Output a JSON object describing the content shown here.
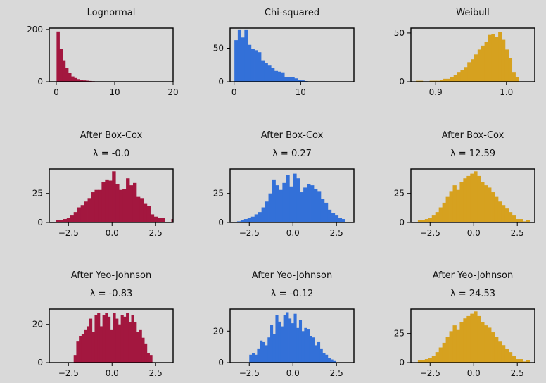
{
  "colors": {
    "background": "#d9d9d9",
    "lognormal": "#a3173f",
    "chi": "#3370d8",
    "weibull": "#d6a11f"
  },
  "chart_data": [
    {
      "type": "bar",
      "title": "Lognormal",
      "color": "#a3173f",
      "xlim": [
        -1.2,
        20
      ],
      "ylim": [
        0,
        205
      ],
      "xticks": [
        0,
        10,
        20
      ],
      "xtick_labels": [
        "0",
        "10",
        "20"
      ],
      "yticks": [
        0,
        200
      ],
      "ytick_labels": [
        "0",
        "200"
      ],
      "bin_start": 0.05,
      "bin_width": 0.5,
      "values": [
        192,
        125,
        82,
        52,
        35,
        20,
        14,
        10,
        8,
        5,
        4,
        3,
        2,
        1
      ]
    },
    {
      "type": "bar",
      "title": "Chi-squared",
      "color": "#3370d8",
      "xlim": [
        -0.6,
        18
      ],
      "ylim": [
        0,
        80
      ],
      "xticks": [
        0,
        10
      ],
      "xtick_labels": [
        "0",
        "10"
      ],
      "yticks": [
        0,
        50
      ],
      "ytick_labels": [
        "0",
        "50"
      ],
      "bin_start": 0.05,
      "bin_width": 0.5,
      "values": [
        62,
        78,
        66,
        78,
        55,
        49,
        47,
        44,
        32,
        28,
        24,
        21,
        16,
        15,
        14,
        7,
        7,
        7,
        5,
        3,
        2,
        1
      ]
    },
    {
      "type": "bar",
      "title": "Weibull",
      "color": "#d6a11f",
      "xlim": [
        0.865,
        1.04
      ],
      "ylim": [
        0,
        55
      ],
      "xticks": [
        0.9,
        1.0
      ],
      "xtick_labels": [
        "0.9",
        "1.0"
      ],
      "yticks": [
        0,
        50
      ],
      "ytick_labels": [
        "0",
        "50"
      ],
      "bin_start": 0.872,
      "bin_width": 0.00485,
      "values": [
        1,
        1,
        0,
        0,
        1,
        1,
        1,
        2,
        3,
        3,
        5,
        7,
        10,
        12,
        15,
        20,
        23,
        28,
        33,
        37,
        41,
        48,
        49,
        46,
        51,
        43,
        33,
        24,
        10,
        5
      ]
    },
    {
      "type": "bar",
      "title": "After Box-Cox",
      "subtitle": "λ = -0.0",
      "color": "#a3173f",
      "xlim": [
        -3.6,
        3.5
      ],
      "ylim": [
        0,
        46
      ],
      "xticks": [
        -2.5,
        0.0,
        2.5
      ],
      "xtick_labels": [
        "−2.5",
        "0.0",
        "2.5"
      ],
      "yticks": [
        0,
        25
      ],
      "ytick_labels": [
        "0",
        "25"
      ],
      "bin_start": -3.2,
      "bin_width": 0.2,
      "values": [
        2,
        2,
        3,
        4,
        6,
        9,
        13,
        15,
        18,
        21,
        26,
        28,
        28,
        35,
        37,
        36,
        44,
        33,
        28,
        29,
        38,
        32,
        34,
        22,
        21,
        16,
        14,
        7,
        5,
        4,
        4,
        0,
        0,
        3
      ]
    },
    {
      "type": "bar",
      "title": "After Box-Cox",
      "subtitle": "λ = 0.27",
      "color": "#3370d8",
      "xlim": [
        -3.6,
        3.5
      ],
      "ylim": [
        0,
        46
      ],
      "xticks": [
        -2.5,
        0.0,
        2.5
      ],
      "xtick_labels": [
        "−2.5",
        "0.0",
        "2.5"
      ],
      "yticks": [
        0,
        25
      ],
      "ytick_labels": [
        "0",
        "25"
      ],
      "bin_start": -3.2,
      "bin_width": 0.2,
      "values": [
        1,
        2,
        3,
        4,
        5,
        7,
        9,
        13,
        18,
        25,
        37,
        32,
        28,
        34,
        41,
        31,
        42,
        38,
        26,
        30,
        33,
        32,
        29,
        27,
        20,
        17,
        11,
        8,
        6,
        4,
        3
      ]
    },
    {
      "type": "bar",
      "title": "After Box-Cox",
      "subtitle": "λ = 12.59",
      "color": "#d6a11f",
      "xlim": [
        -3.6,
        3.5
      ],
      "ylim": [
        0,
        46
      ],
      "xticks": [
        -2.5,
        0.0,
        2.5
      ],
      "xtick_labels": [
        "−2.5",
        "0.0",
        "2.5"
      ],
      "yticks": [
        0,
        25
      ],
      "ytick_labels": [
        "0",
        "25"
      ],
      "bin_start": -3.2,
      "bin_width": 0.2,
      "values": [
        2,
        2,
        3,
        4,
        6,
        9,
        13,
        17,
        22,
        27,
        32,
        28,
        35,
        38,
        40,
        42,
        44,
        40,
        35,
        32,
        30,
        26,
        22,
        18,
        15,
        12,
        9,
        6,
        3,
        3,
        1,
        2
      ]
    },
    {
      "type": "bar",
      "title": "After Yeo-Johnson",
      "subtitle": "λ = -0.83",
      "color": "#a3173f",
      "xlim": [
        -3.6,
        3.5
      ],
      "ylim": [
        0,
        28
      ],
      "xticks": [
        -2.5,
        0.0,
        2.5
      ],
      "xtick_labels": [
        "−2.5",
        "0.0",
        "2.5"
      ],
      "yticks": [
        0,
        20
      ],
      "ytick_labels": [
        "0",
        "20"
      ],
      "bin_start": -2.2,
      "bin_width": 0.15,
      "values": [
        4,
        11,
        14,
        15,
        17,
        19,
        23,
        16,
        25,
        26,
        19,
        25,
        26,
        24,
        17,
        26,
        23,
        20,
        25,
        24,
        26,
        21,
        25,
        21,
        16,
        17,
        13,
        10,
        5,
        4
      ]
    },
    {
      "type": "bar",
      "title": "After Yeo-Johnson",
      "subtitle": "λ = -0.12",
      "color": "#3370d8",
      "xlim": [
        -3.6,
        3.5
      ],
      "ylim": [
        0,
        34
      ],
      "xticks": [
        -2.5,
        0.0,
        2.5
      ],
      "xtick_labels": [
        "−2.5",
        "0.0",
        "2.5"
      ],
      "yticks": [
        0,
        20
      ],
      "ytick_labels": [
        "0",
        "20"
      ],
      "bin_start": -2.5,
      "bin_width": 0.15,
      "values": [
        5,
        6,
        5,
        9,
        14,
        13,
        11,
        16,
        24,
        18,
        30,
        26,
        23,
        30,
        32,
        28,
        25,
        31,
        22,
        27,
        20,
        22,
        21,
        17,
        16,
        11,
        13,
        9,
        6,
        5,
        3,
        2,
        1
      ]
    },
    {
      "type": "bar",
      "title": "After Yeo-Johnson",
      "subtitle": "λ = 24.53",
      "color": "#d6a11f",
      "xlim": [
        -3.6,
        3.5
      ],
      "ylim": [
        0,
        46
      ],
      "xticks": [
        -2.5,
        0.0,
        2.5
      ],
      "xtick_labels": [
        "−2.5",
        "0.0",
        "2.5"
      ],
      "yticks": [
        0,
        25
      ],
      "ytick_labels": [
        "0",
        "25"
      ],
      "bin_start": -3.2,
      "bin_width": 0.2,
      "values": [
        2,
        2,
        3,
        4,
        6,
        9,
        13,
        17,
        22,
        27,
        32,
        28,
        35,
        38,
        40,
        42,
        44,
        40,
        35,
        32,
        30,
        26,
        22,
        18,
        15,
        12,
        9,
        6,
        3,
        3,
        1,
        2
      ]
    }
  ]
}
